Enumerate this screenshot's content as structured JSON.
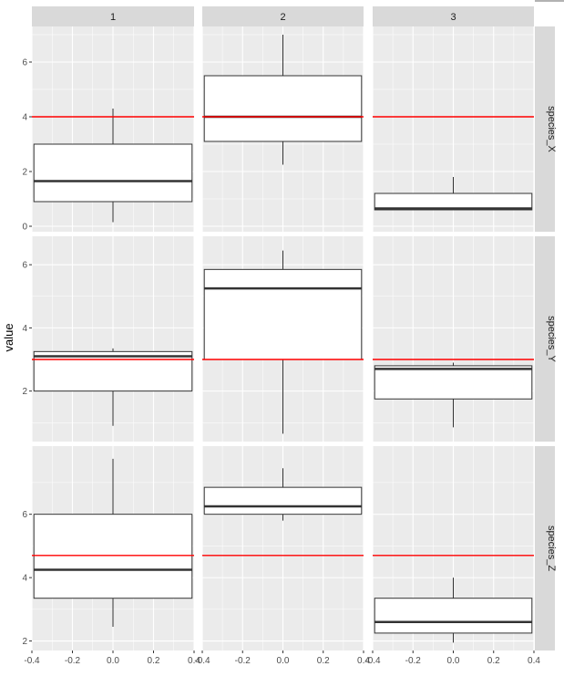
{
  "chart_data": {
    "type": "boxplot",
    "facet_cols": [
      "1",
      "2",
      "3"
    ],
    "facet_rows": [
      "species_X",
      "species_Y",
      "species_Z"
    ],
    "ylabel": "value",
    "xlabel": "",
    "x_ticks": [
      "-0.4",
      "-0.2",
      "0.0",
      "0.2",
      "0.4"
    ],
    "x_range": [
      -0.4,
      0.4
    ],
    "box_x_extent": [
      -0.39,
      0.39
    ],
    "rows": [
      {
        "name": "species_X",
        "ylim": [
          -0.2,
          7.3
        ],
        "y_ticks": [
          0,
          2,
          4,
          6
        ],
        "hline": 4.0,
        "boxes": [
          {
            "col": "1",
            "min": 0.15,
            "q1": 0.9,
            "median": 1.65,
            "q3": 3.0,
            "max": 4.3
          },
          {
            "col": "2",
            "min": 2.25,
            "q1": 3.1,
            "median": 4.0,
            "q3": 5.5,
            "max": 7.0
          },
          {
            "col": "3",
            "min": 0.6,
            "q1": 0.6,
            "median": 0.65,
            "q3": 1.2,
            "max": 1.8
          }
        ]
      },
      {
        "name": "species_Y",
        "ylim": [
          0.4,
          6.9
        ],
        "y_ticks": [
          2,
          4,
          6
        ],
        "hline": 3.0,
        "boxes": [
          {
            "col": "1",
            "min": 0.9,
            "q1": 2.0,
            "median": 3.1,
            "q3": 3.25,
            "max": 3.35
          },
          {
            "col": "2",
            "min": 0.65,
            "q1": 3.0,
            "median": 5.25,
            "q3": 5.85,
            "max": 6.45
          },
          {
            "col": "3",
            "min": 0.85,
            "q1": 1.75,
            "median": 2.7,
            "q3": 2.8,
            "max": 2.9
          }
        ]
      },
      {
        "name": "species_Z",
        "ylim": [
          1.7,
          8.15
        ],
        "y_ticks": [
          2,
          4,
          6
        ],
        "hline": 4.7,
        "boxes": [
          {
            "col": "1",
            "min": 2.45,
            "q1": 3.35,
            "median": 4.25,
            "q3": 6.0,
            "max": 7.75
          },
          {
            "col": "2",
            "min": 5.8,
            "q1": 6.0,
            "median": 6.25,
            "q3": 6.85,
            "max": 7.45
          },
          {
            "col": "3",
            "min": 1.95,
            "q1": 2.25,
            "median": 2.6,
            "q3": 3.35,
            "max": 4.0
          }
        ]
      }
    ],
    "colors": {
      "panel_bg": "#ebebeb",
      "grid_major": "#ffffff",
      "strip_bg": "#d9d9d9",
      "box_fill": "#ffffff",
      "box_line": "#333333",
      "hline": "#ff0000"
    }
  }
}
